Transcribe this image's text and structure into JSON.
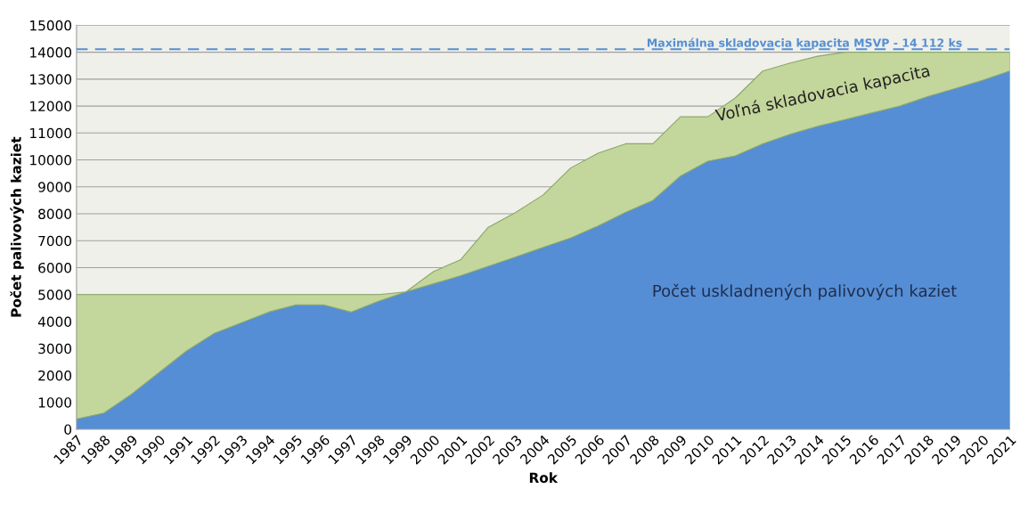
{
  "chart_data": {
    "type": "area",
    "stacked": true,
    "xlabel": "Rok",
    "ylabel": "Počet palivových kaziet",
    "categories": [
      "1987",
      "1988",
      "1989",
      "1990",
      "1991",
      "1992",
      "1993",
      "1994",
      "1995",
      "1996",
      "1997",
      "1998",
      "1999",
      "2000",
      "2001",
      "2002",
      "2003",
      "2004",
      "2005",
      "2006",
      "2007",
      "2008",
      "2009",
      "2010",
      "2011",
      "2012",
      "2013",
      "2014",
      "2015",
      "2016",
      "2017",
      "2018",
      "2019",
      "2020",
      "2021"
    ],
    "series": [
      {
        "name": "Počet uskladnených palivových kaziet",
        "color": "#558ed5",
        "values": [
          380,
          600,
          1300,
          2100,
          2900,
          3550,
          3950,
          4350,
          4620,
          4620,
          4350,
          4750,
          5100,
          5400,
          5700,
          6050,
          6400,
          6750,
          7100,
          7550,
          8050,
          8500,
          9400,
          9950,
          10150,
          10600,
          10950,
          11250,
          11500,
          11750,
          12000,
          12350,
          12650,
          12950,
          13300
        ]
      },
      {
        "name": "Voľná skladovacia kapacita",
        "color": "#c3d69b",
        "values": [
          4620,
          4400,
          3700,
          2900,
          2100,
          1450,
          1050,
          650,
          380,
          380,
          650,
          250,
          0,
          450,
          600,
          1450,
          1650,
          1950,
          2600,
          2700,
          2550,
          2100,
          2200,
          1650,
          2150,
          2700,
          2650,
          2600,
          2500,
          2250,
          2000,
          1650,
          1350,
          1050,
          700
        ]
      }
    ],
    "ylim": [
      0,
      15000
    ],
    "yticks": [
      0,
      1000,
      2000,
      3000,
      4000,
      5000,
      6000,
      7000,
      8000,
      9000,
      10000,
      11000,
      12000,
      13000,
      14000,
      15000
    ],
    "ref_lines": [
      {
        "axis": "y",
        "value": 14112,
        "label": "Maximálna skladovacia kapacita MSVP - 14 112 ks",
        "color": "#558ed5",
        "line_style": "dashed"
      }
    ],
    "grid": "y",
    "legend": false
  }
}
